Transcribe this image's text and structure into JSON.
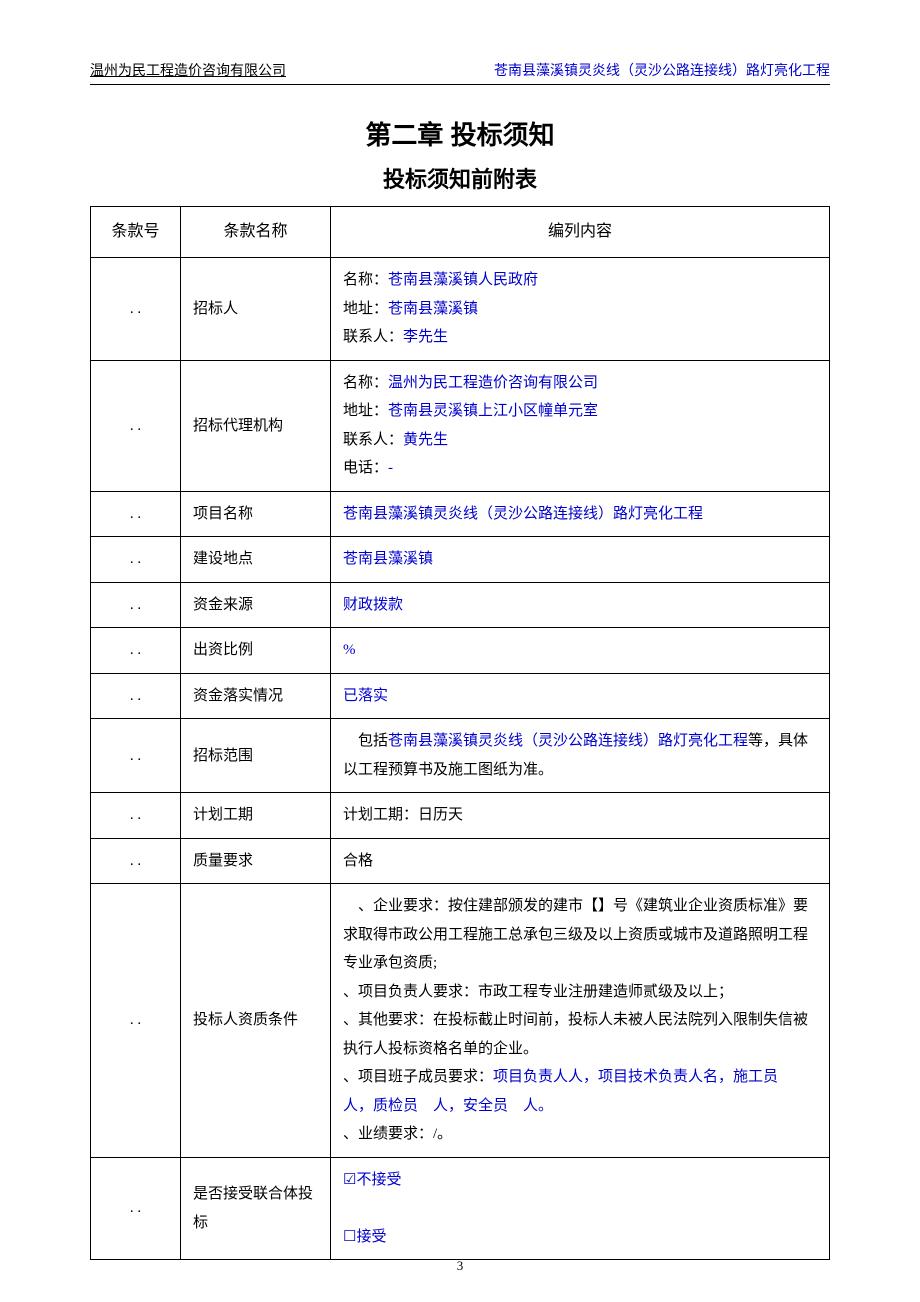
{
  "header": {
    "left": "温州为民工程造价咨询有限公司",
    "right": "苍南县藻溪镇灵炎线（灵沙公路连接线）路灯亮化工程"
  },
  "titles": {
    "chapter": "第二章 投标须知",
    "subtitle": "投标须知前附表"
  },
  "table": {
    "head": {
      "c1": "条款号",
      "c2": "条款名称",
      "c3": "编列内容"
    },
    "rows": [
      {
        "num": ". .",
        "name": "招标人",
        "content_parts": [
          {
            "plain": "名称：",
            "blue": "苍南县藻溪镇人民政府"
          },
          {
            "plain": "地址：",
            "blue": "苍南县藻溪镇"
          },
          {
            "plain": "联系人：",
            "blue": "李先生"
          }
        ]
      },
      {
        "num": ". .",
        "name": "招标代理机构",
        "content_parts": [
          {
            "plain": "名称：",
            "blue": "温州为民工程造价咨询有限公司"
          },
          {
            "plain": "地址：",
            "blue": "苍南县灵溪镇上江小区幢单元室"
          },
          {
            "plain": "联系人：",
            "blue": "黄先生"
          },
          {
            "plain": "电话：",
            "blue": "-"
          }
        ]
      },
      {
        "num": ". .",
        "name": "项目名称",
        "blue_text": "苍南县藻溪镇灵炎线（灵沙公路连接线）路灯亮化工程"
      },
      {
        "num": ". .",
        "name": "建设地点",
        "blue_text": "苍南县藻溪镇"
      },
      {
        "num": ". .",
        "name": "资金来源",
        "blue_text": "财政拨款"
      },
      {
        "num": ". .",
        "name": "出资比例",
        "blue_text": "%"
      },
      {
        "num": ". .",
        "name": "资金落实情况",
        "blue_text": "已落实"
      },
      {
        "num": ". .",
        "name": "招标范围",
        "scope_prefix": "　包括",
        "scope_blue": "苍南县藻溪镇灵炎线（灵沙公路连接线）路灯亮化工程",
        "scope_suffix": "等，具体以工程预算书及施工图纸为准。"
      },
      {
        "num": ". .",
        "name": "计划工期",
        "plain_text": "计划工期：日历天"
      },
      {
        "num": ". .",
        "name": "质量要求",
        "plain_text": "合格"
      },
      {
        "num": ". .",
        "name": "投标人资质条件",
        "qual_p1": "　、企业要求：按住建部颁发的建市【】号《建筑业企业资质标准》要求取得市政公用工程施工总承包三级及以上资质或城市及道路照明工程专业承包资质;",
        "qual_p2": "、项目负责人要求：市政工程专业注册建造师贰级及以上；",
        "qual_p3": "、其他要求：在投标截止时间前，投标人未被人民法院列入限制失信被执行人投标资格名单的企业。",
        "qual_p4_prefix": "、项目班子成员要求：",
        "qual_p4_blue": "项目负责人人，项目技术负责人名，施工员　人，质检员　人，安全员　人。",
        "qual_p5": "、业绩要求：/。"
      },
      {
        "num": ". .",
        "name": "是否接受联合体投标",
        "option1_mark": "☑",
        "option1_text": "不接受",
        "option2_mark": "☐",
        "option2_text": "接受"
      }
    ]
  },
  "pagenum": "3"
}
